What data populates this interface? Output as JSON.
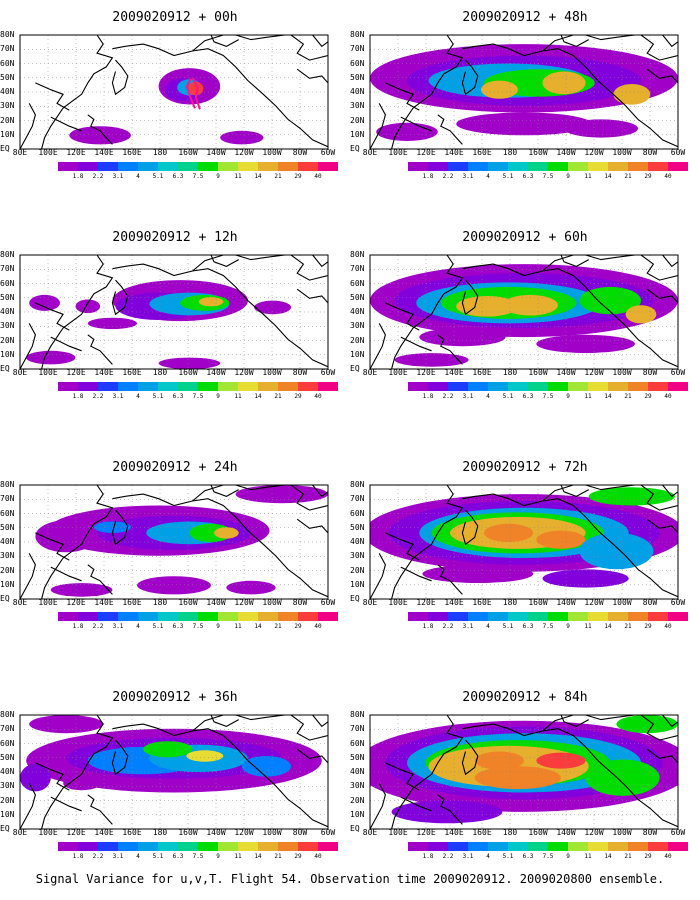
{
  "caption": "Signal Variance for u,v,T. Flight 54. Observation time 2009020912. 2009020800 ensemble.",
  "panels": [
    {
      "title": "2009020912 + 00h"
    },
    {
      "title": "2009020912 + 12h"
    },
    {
      "title": "2009020912 + 24h"
    },
    {
      "title": "2009020912 + 36h"
    },
    {
      "title": "2009020912 + 48h"
    },
    {
      "title": "2009020912 + 60h"
    },
    {
      "title": "2009020912 + 72h"
    },
    {
      "title": "2009020912 + 84h"
    }
  ],
  "axes": {
    "lat_labels": [
      "80N",
      "70N",
      "60N",
      "50N",
      "40N",
      "30N",
      "20N",
      "10N",
      "EQ"
    ],
    "lon_labels": [
      "80E",
      "100E",
      "120E",
      "140E",
      "160E",
      "180",
      "160W",
      "140W",
      "120W",
      "100W",
      "80W",
      "60W"
    ]
  },
  "colorbar": {
    "labels": [
      "1.8",
      "2.2",
      "3.1",
      "4",
      "5.1",
      "6.3",
      "7.5",
      "9",
      "11",
      "14",
      "21",
      "29",
      "40"
    ],
    "colors": [
      "#a000c8",
      "#8200dc",
      "#1e3cff",
      "#0080ff",
      "#00a0e6",
      "#00c8c8",
      "#00d28c",
      "#00dc00",
      "#a0e632",
      "#e6dc32",
      "#e6af2d",
      "#f08228",
      "#fa3c3c",
      "#f00082"
    ]
  }
}
